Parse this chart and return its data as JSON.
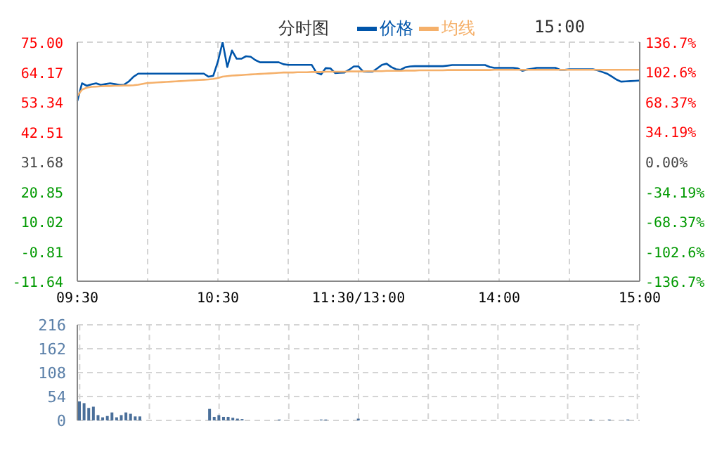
{
  "chart_data": [
    {
      "type": "line",
      "title": "分时图",
      "annotations": [
        "15:00"
      ],
      "legend": "top",
      "grid": true,
      "categories": [
        "09:30",
        null,
        null,
        null,
        null,
        null,
        null,
        null,
        null,
        null,
        null,
        null,
        null,
        null,
        null,
        null,
        null,
        null,
        null,
        null,
        null,
        null,
        null,
        null,
        null,
        null,
        null,
        null,
        null,
        null,
        "10:30",
        null,
        null,
        null,
        null,
        null,
        null,
        null,
        null,
        null,
        null,
        null,
        null,
        null,
        null,
        null,
        null,
        null,
        null,
        null,
        null,
        null,
        null,
        null,
        null,
        null,
        null,
        null,
        null,
        null,
        "11:30/13:00",
        null,
        null,
        null,
        null,
        null,
        null,
        null,
        null,
        null,
        null,
        null,
        null,
        null,
        null,
        null,
        null,
        null,
        null,
        null,
        null,
        null,
        null,
        null,
        null,
        null,
        null,
        null,
        null,
        null,
        "14:00",
        null,
        null,
        null,
        null,
        null,
        null,
        null,
        null,
        null,
        null,
        null,
        null,
        null,
        null,
        null,
        null,
        null,
        null,
        null,
        null,
        null,
        null,
        null,
        null,
        null,
        null,
        null,
        null,
        null,
        "15:00"
      ],
      "ylim": [
        -11.64,
        75
      ],
      "yticks": [
        -11.64,
        -0.81,
        10.02,
        20.85,
        31.68,
        42.51,
        53.34,
        64.17,
        {
          "value": 75,
          "label": "75.00"
        }
      ],
      "y2lim": [
        -136.7,
        136.7
      ],
      "y2ticks": [
        {
          "value": -136.7,
          "label": "-136.7%"
        },
        {
          "value": -102.6,
          "label": "-102.6%"
        },
        {
          "value": -68.37,
          "label": "-68.37%"
        },
        {
          "value": -34.19,
          "label": "-34.19%"
        },
        {
          "value": 0,
          "label": "0.00%"
        },
        {
          "value": 34.19,
          "label": "34.19%"
        },
        {
          "value": 68.37,
          "label": "68.37%"
        },
        {
          "value": 102.6,
          "label": "102.6%"
        },
        {
          "value": 136.7,
          "label": "136.7%"
        }
      ],
      "series": [
        {
          "name": "价格",
          "color": "#0055aa",
          "values": [
            53.7,
            60.1,
            59.2,
            59.7,
            60.1,
            59.5,
            59.8,
            60.1,
            59.8,
            59.5,
            59.6,
            60.8,
            62.5,
            63.6,
            63.6,
            63.6,
            63.6,
            63.6,
            63.6,
            63.6,
            63.6,
            63.6,
            63.6,
            63.6,
            63.6,
            63.6,
            63.6,
            63.6,
            62.5,
            62.8,
            68,
            75.0,
            66,
            72,
            69,
            69,
            69.9,
            69.7,
            68.5,
            67.7,
            67.7,
            67.7,
            67.7,
            67.7,
            67.0,
            66.8,
            66.8,
            66.8,
            66.8,
            66.8,
            66.8,
            64.0,
            63.3,
            65.6,
            65.5,
            63.8,
            63.9,
            64.0,
            65.0,
            66.2,
            66.2,
            64.3,
            64.3,
            64.3,
            65.5,
            66.8,
            67.2,
            66.0,
            65.2,
            65.0,
            65.9,
            66.2,
            66.3,
            66.3,
            66.3,
            66.3,
            66.3,
            66.3,
            66.3,
            66.5,
            66.7,
            66.7,
            66.7,
            66.7,
            66.7,
            66.7,
            66.7,
            66.7,
            66.0,
            65.7,
            65.7,
            65.7,
            65.7,
            65.7,
            65.5,
            64.6,
            65.1,
            65.4,
            65.7,
            65.7,
            65.7,
            65.7,
            65.7,
            65.0,
            65.0,
            65.2,
            65.2,
            65.2,
            65.2,
            65.2,
            65.2,
            64.8,
            64.2,
            63.6,
            62.6,
            61.5,
            60.7,
            60.8,
            60.9,
            61.0,
            61.1
          ]
        },
        {
          "name": "均线",
          "color": "#f5b06a",
          "values": [
            55.5,
            57.8,
            58.5,
            58.8,
            58.9,
            59.0,
            59.1,
            59.1,
            59.2,
            59.2,
            59.3,
            59.3,
            59.4,
            59.6,
            59.9,
            60.2,
            60.3,
            60.4,
            60.5,
            60.6,
            60.7,
            60.8,
            60.9,
            61.0,
            61.1,
            61.2,
            61.3,
            61.4,
            61.5,
            61.7,
            62.0,
            62.5,
            62.7,
            62.9,
            63.0,
            63.1,
            63.2,
            63.3,
            63.4,
            63.5,
            63.6,
            63.7,
            63.8,
            63.9,
            64.0,
            64.0,
            64.0,
            64.1,
            64.1,
            64.1,
            64.2,
            64.2,
            64.2,
            64.3,
            64.3,
            64.3,
            64.3,
            64.3,
            64.4,
            64.4,
            64.4,
            64.4,
            64.5,
            64.5,
            64.5,
            64.5,
            64.6,
            64.6,
            64.6,
            64.6,
            64.7,
            64.7,
            64.7,
            64.8,
            64.8,
            64.8,
            64.8,
            64.8,
            64.8,
            64.9,
            64.9,
            64.9,
            64.9,
            64.9,
            64.9,
            64.9,
            64.9,
            64.9,
            64.9,
            65.0,
            65.0,
            65.0,
            65.0,
            65.0,
            65.0,
            65.0,
            65.0,
            65.0,
            65.0,
            65.0,
            65.0,
            65.0,
            65.0,
            65.0,
            65.0,
            65.0,
            65.0,
            65.0,
            65.0,
            65.0,
            65.0,
            65.0,
            65.0,
            65.0,
            65.0,
            65.0,
            65.0,
            65.0,
            65.0,
            65.0,
            65.0
          ]
        }
      ]
    },
    {
      "type": "bar",
      "tick_labels": "y",
      "grid": true,
      "color": "#4a6f9a",
      "categories": [
        null,
        null,
        null,
        null,
        null,
        null,
        null,
        null,
        null,
        null,
        null,
        null,
        null,
        null,
        null,
        null,
        null,
        null,
        null,
        null,
        null,
        null,
        null,
        null,
        null,
        null,
        null,
        null,
        null,
        null,
        null,
        null,
        null,
        null,
        null,
        null,
        null,
        null,
        null,
        null,
        null,
        null,
        null,
        null,
        null,
        null,
        null,
        null,
        null,
        null,
        null,
        null,
        null,
        null,
        null,
        null,
        null,
        null,
        null,
        null,
        null,
        null,
        null,
        null,
        null,
        null,
        null,
        null,
        null,
        null,
        null,
        null,
        null,
        null,
        null,
        null,
        null,
        null,
        null,
        null,
        null,
        null,
        null,
        null,
        null,
        null,
        null,
        null,
        null,
        null,
        null,
        null,
        null,
        null,
        null,
        null,
        null,
        null,
        null,
        null,
        null,
        null,
        null,
        null,
        null,
        null,
        null,
        null,
        null,
        null,
        null,
        null,
        null,
        null,
        null,
        null,
        null,
        null,
        null,
        null,
        null
      ],
      "ylim": [
        0,
        216
      ],
      "yticks": [
        0,
        54,
        108,
        162,
        216
      ],
      "values": [
        43,
        39,
        28,
        31,
        12,
        7,
        10,
        18,
        7,
        12,
        18,
        15,
        9,
        9,
        0,
        0,
        0,
        0,
        0,
        0,
        0,
        0,
        0,
        0,
        0,
        0,
        0,
        0,
        26,
        8,
        12,
        8,
        8,
        6,
        4,
        3,
        0,
        0,
        0,
        0,
        0,
        0,
        0,
        2,
        0,
        0,
        0,
        0,
        0,
        0,
        0,
        0,
        2,
        2,
        0,
        0,
        0,
        0,
        0,
        0,
        4,
        0,
        0,
        0,
        0,
        0,
        0,
        0,
        0,
        0,
        0,
        0,
        0,
        0,
        0,
        0,
        0,
        0,
        0,
        0,
        0,
        0,
        0,
        0,
        0,
        0,
        0,
        0,
        0,
        0,
        0,
        0,
        0,
        0,
        0,
        0,
        0,
        0,
        0,
        0,
        0,
        0,
        0,
        0,
        0,
        0,
        0,
        0,
        0,
        0,
        2,
        0,
        0,
        0,
        2,
        0,
        0,
        0,
        2,
        0,
        0
      ]
    }
  ]
}
